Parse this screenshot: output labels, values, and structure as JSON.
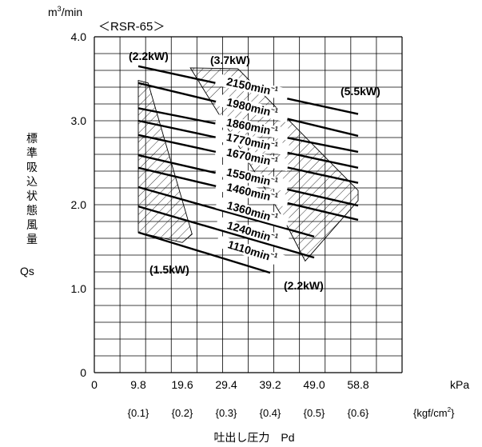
{
  "page_title_fragment": "",
  "chart_data": {
    "type": "line",
    "model_label": "＜RSR-65＞",
    "y_unit_main": "m",
    "y_unit_sup": "3",
    "y_unit_rest": "/min",
    "ylabel_chars": [
      "標",
      "準",
      "吸",
      "込",
      "状",
      "態",
      "風",
      "量"
    ],
    "ylabel_symbol": "Qs",
    "ylim": [
      0,
      4.0
    ],
    "xlim": [
      0,
      68.6
    ],
    "y_ticks": [
      "4.0",
      "3.0",
      "2.0",
      "1.0",
      "0"
    ],
    "y_tick_values": [
      4.0,
      3.0,
      2.0,
      1.0,
      0
    ],
    "x_ticks": [
      "0",
      "9.8",
      "19.6",
      "29.4",
      "39.2",
      "49.0",
      "58.8"
    ],
    "x_tick_values": [
      0,
      9.8,
      19.6,
      29.4,
      39.2,
      49.0,
      58.8
    ],
    "x_unit": "kPa",
    "x_ticks_kgf": [
      "{0.1}",
      "{0.2}",
      "{0.3}",
      "{0.4}",
      "{0.5}",
      "{0.6}"
    ],
    "x_unit_kgf_main": "{kgf/cm",
    "x_unit_kgf_sup": "2",
    "x_unit_kgf_end": "}",
    "xlabel": "吐出し圧力　Pd",
    "grid": true,
    "speed_unit": "min",
    "speed_unit_exp": "−1",
    "series": [
      {
        "name": "2150",
        "x": [
          9.8,
          58.8
        ],
        "y": [
          3.65,
          3.08
        ]
      },
      {
        "name": "1980",
        "x": [
          9.8,
          58.8
        ],
        "y": [
          3.45,
          2.82
        ]
      },
      {
        "name": "1860",
        "x": [
          9.8,
          58.8
        ],
        "y": [
          3.15,
          2.63
        ]
      },
      {
        "name": "1770",
        "x": [
          9.8,
          58.8
        ],
        "y": [
          3.0,
          2.44
        ]
      },
      {
        "name": "1670",
        "x": [
          9.8,
          58.8
        ],
        "y": [
          2.83,
          2.26
        ]
      },
      {
        "name": "1550",
        "x": [
          9.8,
          58.8
        ],
        "y": [
          2.59,
          1.99
        ]
      },
      {
        "name": "1460",
        "x": [
          9.8,
          58.8
        ],
        "y": [
          2.44,
          1.82
        ]
      },
      {
        "name": "1360",
        "x": [
          9.8,
          49.0
        ],
        "y": [
          2.21,
          1.62
        ]
      },
      {
        "name": "1240",
        "x": [
          9.8,
          49.0
        ],
        "y": [
          1.98,
          1.37
        ]
      },
      {
        "name": "1110",
        "x": [
          9.8,
          39.2
        ],
        "y": [
          1.67,
          1.19
        ]
      }
    ],
    "power_zones": [
      {
        "label": "(1.5kW)"
      },
      {
        "label": "(2.2kW)"
      },
      {
        "label": "(3.7kW)"
      },
      {
        "label": "(5.5kW)"
      },
      {
        "label": "(2.2kW)"
      }
    ]
  }
}
